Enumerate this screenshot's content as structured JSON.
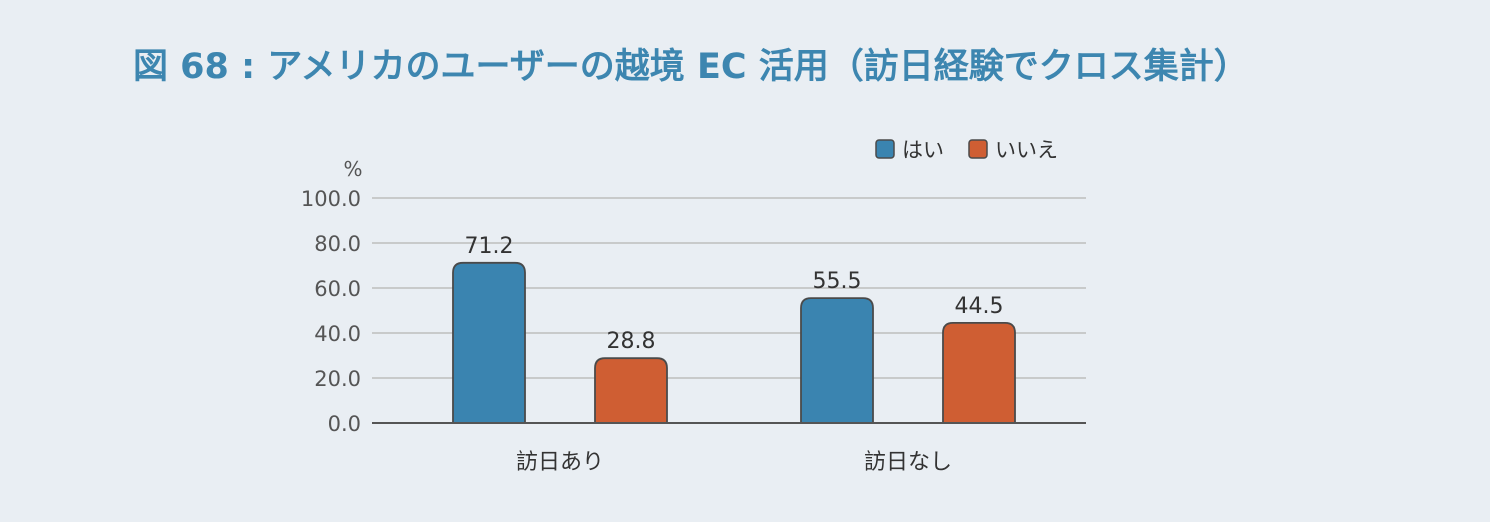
{
  "title": "図 68 : アメリカのユーザーの越境 EC 活用（訪日経験でクロス集計）",
  "colors": {
    "background": "#e9eef3",
    "title": "#3d86b0",
    "series_yes": "#3a84b0",
    "series_no": "#cf5e33",
    "bar_stroke": "#4a4a4a",
    "grid": "#bdbdbd",
    "axis": "#555555",
    "text": "#333333"
  },
  "chart_data": {
    "type": "bar",
    "categories": [
      "訪日あり",
      "訪日なし"
    ],
    "series": [
      {
        "name": "はい",
        "values": [
          71.2,
          55.5
        ]
      },
      {
        "name": "いいえ",
        "values": [
          28.8,
          44.5
        ]
      }
    ],
    "data_labels": [
      [
        "71.2",
        "55.5"
      ],
      [
        "28.8",
        "44.5"
      ]
    ],
    "ylabel": "%",
    "ylim": [
      0,
      100
    ],
    "yticks": [
      "0.0",
      "20.0",
      "40.0",
      "60.0",
      "80.0",
      "100.0"
    ],
    "grid": true,
    "legend_position": "top-right"
  }
}
